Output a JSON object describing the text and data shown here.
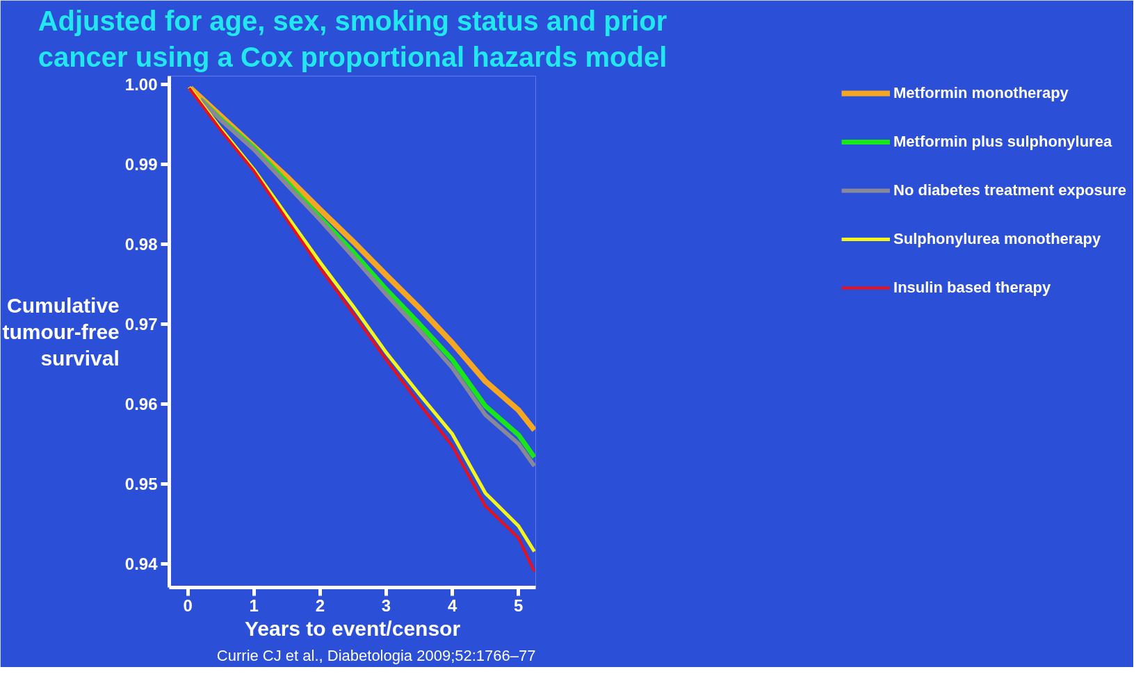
{
  "chart_data": {
    "type": "line",
    "title": "Adjusted for age, sex, smoking status and prior cancer using a Cox proportional hazards model",
    "xlabel": "Years to event/censor",
    "ylabel": "Cumulative tumour-free survival",
    "annotations": [
      "Currie CJ et al., Diabetologia 2009;52:1766–77"
    ],
    "xlim": [
      -0.28,
      5.26
    ],
    "ylim": [
      0.937,
      1.001
    ],
    "xticks": [
      0,
      1,
      2,
      3,
      4,
      5
    ],
    "yticks": [
      0.94,
      0.95,
      0.96,
      0.97,
      0.98,
      0.99,
      {
        "value": 1,
        "label": "1.00"
      }
    ],
    "grid": false,
    "legend": "right",
    "line_style": "solid",
    "marker": "none",
    "series": [
      {
        "name": "Metformin monotherapy",
        "color": "#f5a623",
        "x": [
          0.04,
          0.5,
          1,
          1.5,
          2,
          2.5,
          3,
          3.5,
          4,
          4.5,
          5,
          5.24
        ],
        "values": [
          0.9995,
          0.996,
          0.9922,
          0.9884,
          0.9843,
          0.9803,
          0.9761,
          0.972,
          0.9676,
          0.9628,
          0.9592,
          0.9567
        ]
      },
      {
        "name": "Metformin plus sulphonylurea",
        "color": "#19e619",
        "x": [
          0.19,
          0.5,
          1,
          1.5,
          2,
          2.5,
          3,
          3.5,
          4,
          4.5,
          5,
          5.24
        ],
        "values": [
          0.9981,
          0.9956,
          0.992,
          0.9877,
          0.9833,
          0.979,
          0.9743,
          0.97,
          0.9655,
          0.9597,
          0.9561,
          0.9533
        ]
      },
      {
        "name": "No diabetes treatment exposure",
        "color": "#888899",
        "x": [
          0.19,
          0.5,
          1,
          1.5,
          2,
          2.5,
          3,
          3.5,
          4,
          4.5,
          5,
          5.24
        ],
        "values": [
          0.9981,
          0.9955,
          0.9918,
          0.9874,
          0.983,
          0.9784,
          0.9737,
          0.9692,
          0.9645,
          0.9586,
          0.955,
          0.9522
        ]
      },
      {
        "name": "Sulphonylurea monotherapy",
        "color": "#f5f51e",
        "x": [
          0.02,
          0.5,
          1,
          1.5,
          2,
          2.5,
          3,
          3.5,
          4,
          4.5,
          5,
          5.24
        ],
        "values": [
          0.9996,
          0.9944,
          0.9893,
          0.9835,
          0.9777,
          0.9722,
          0.9664,
          0.9612,
          0.9562,
          0.9488,
          0.9447,
          0.9415
        ]
      },
      {
        "name": "Insulin based therapy",
        "color": "#e8101a",
        "x": [
          0.02,
          0.5,
          1,
          1.5,
          2,
          2.5,
          3,
          3.5,
          4,
          4.5,
          5,
          5.24
        ],
        "values": [
          0.9995,
          0.9942,
          0.9891,
          0.983,
          0.977,
          0.9713,
          0.9655,
          0.96,
          0.9547,
          0.9472,
          0.9432,
          0.939
        ]
      }
    ]
  }
}
